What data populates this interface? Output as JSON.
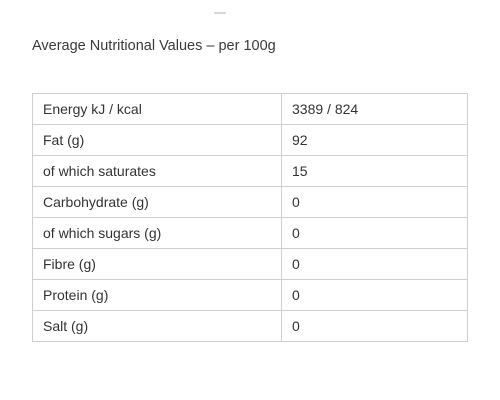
{
  "heading": "Average Nutritional Values – per 100g",
  "table": {
    "rows": [
      {
        "label": "Energy kJ / kcal",
        "value": "3389 / 824"
      },
      {
        "label": "Fat (g)",
        "value": "92"
      },
      {
        "label": "of which saturates",
        "value": "15"
      },
      {
        "label": "Carbohydrate (g)",
        "value": "0"
      },
      {
        "label": "of which sugars (g)",
        "value": "0"
      },
      {
        "label": "Fibre (g)",
        "value": "0"
      },
      {
        "label": "Protein (g)",
        "value": "0"
      },
      {
        "label": "Salt (g)",
        "value": "0"
      }
    ]
  }
}
